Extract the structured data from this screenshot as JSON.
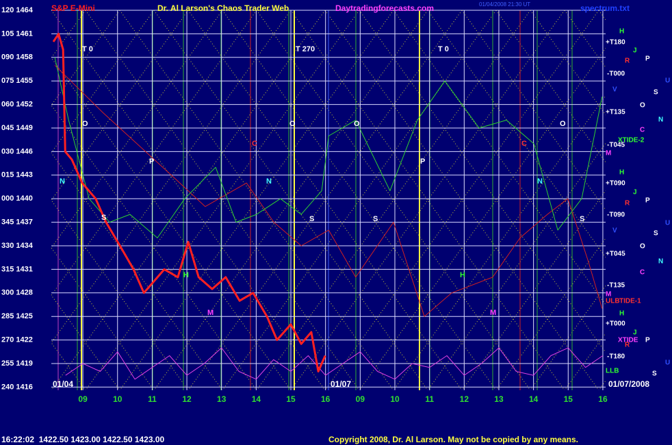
{
  "chart_data": {
    "type": "line",
    "title": "Dr. Al Larson's Chaos Trader Web",
    "instrument": "S&P E-Mini",
    "website": "Daytradingforecasts.com",
    "source_file": "spectrum.txt",
    "timestamp": "01/04/2008 21:30 UT",
    "status_line": "16:22:02  1422.50 1423.00 1422.50 1423.00",
    "copyright": "Copyright 2008, Dr. Al Larson. May not be copied by any means.",
    "dates": [
      "01/04",
      "01/07",
      "01/07/2008"
    ],
    "xlim": [
      0.09,
      16.08
    ],
    "xticks": [
      {
        "value": 1,
        "label": "09"
      },
      {
        "value": 2,
        "label": "10"
      },
      {
        "value": 3,
        "label": "11"
      },
      {
        "value": 4,
        "label": "12"
      },
      {
        "value": 5,
        "label": "13"
      },
      {
        "value": 6,
        "label": "14"
      },
      {
        "value": 7,
        "label": "15"
      },
      {
        "value": 8,
        "label": "16"
      },
      {
        "value": 9,
        "label": "09"
      },
      {
        "value": 10,
        "label": "10"
      },
      {
        "value": 11,
        "label": "11"
      },
      {
        "value": 12,
        "label": "12"
      },
      {
        "value": 13,
        "label": "13"
      },
      {
        "value": 14,
        "label": "14"
      },
      {
        "value": 15,
        "label": "15"
      },
      {
        "value": 16,
        "label": "16"
      }
    ],
    "ylim": [
      1415.6,
      1464
    ],
    "yticks": [
      {
        "value": 1464,
        "label": "120 1464"
      },
      {
        "value": 1461,
        "label": "105 1461"
      },
      {
        "value": 1458,
        "label": "090 1458"
      },
      {
        "value": 1455,
        "label": "075 1455"
      },
      {
        "value": 1452,
        "label": "060 1452"
      },
      {
        "value": 1449,
        "label": "045 1449"
      },
      {
        "value": 1446,
        "label": "030 1446"
      },
      {
        "value": 1443,
        "label": "015 1443"
      },
      {
        "value": 1440,
        "label": "000 1440"
      },
      {
        "value": 1437,
        "label": "345 1437"
      },
      {
        "value": 1434,
        "label": "330 1434"
      },
      {
        "value": 1431,
        "label": "315 1431"
      },
      {
        "value": 1428,
        "label": "300 1428"
      },
      {
        "value": 1425,
        "label": "285 1425"
      },
      {
        "value": 1422,
        "label": "270 1422"
      },
      {
        "value": 1419,
        "label": "255 1419"
      },
      {
        "value": 1416,
        "label": "240 1416"
      }
    ],
    "grid": true,
    "series": [
      {
        "name": "price",
        "color": "#ff2020",
        "width": 3,
        "x": [
          0.15,
          0.3,
          0.43,
          0.49,
          0.68,
          0.98,
          1.37,
          1.67,
          2.07,
          2.46,
          2.76,
          3.35,
          3.74,
          4.04,
          4.34,
          4.73,
          5.12,
          5.52,
          5.91,
          6.31,
          6.6,
          7.0,
          7.3,
          7.59,
          7.79,
          7.99
        ],
        "values": [
          1460,
          1461,
          1459,
          1446,
          1445,
          1442,
          1440,
          1437,
          1434,
          1431,
          1428,
          1431,
          1430,
          1434.5,
          1430,
          1428.5,
          1430,
          1427,
          1428,
          1425,
          1422,
          1424,
          1421.5,
          1423,
          1418,
          1420
        ]
      },
      {
        "name": "green forecast",
        "color": "#30d030",
        "width": 1,
        "x": [
          0.19,
          0.59,
          1.18,
          1.77,
          2.36,
          3.15,
          3.94,
          4.83,
          5.42,
          6.01,
          6.7,
          7.3,
          7.89,
          8.09,
          8.87,
          9.86,
          10.65,
          11.44,
          12.43,
          13.22,
          14.01,
          14.7,
          15.39,
          15.98
        ],
        "values": [
          1458,
          1450,
          1440,
          1437,
          1438,
          1435,
          1440,
          1444,
          1437,
          1438,
          1440,
          1438,
          1441,
          1448,
          1450,
          1441,
          1450,
          1455,
          1449,
          1450,
          1447,
          1436,
          1440,
          1453
        ]
      },
      {
        "name": "red forecast",
        "color": "#d02020",
        "width": 1,
        "x": [
          0.19,
          1.57,
          2.56,
          3.55,
          4.53,
          5.72,
          6.51,
          7.3,
          8.09,
          8.87,
          9.96,
          10.85,
          11.64,
          12.82,
          13.61,
          14.4,
          14.99,
          15.58,
          15.98
        ],
        "values": [
          1457,
          1451,
          1447,
          1443,
          1439,
          1442,
          1437,
          1434,
          1436,
          1430,
          1437,
          1425,
          1428,
          1430,
          1435,
          1438,
          1440,
          1432,
          1426
        ]
      },
      {
        "name": "spectrum",
        "color": "#e040e0",
        "width": 1,
        "x": [
          0.5,
          1.0,
          1.5,
          2.0,
          2.5,
          3.0,
          3.5,
          4.0,
          4.5,
          5.0,
          5.5,
          6.0,
          6.5,
          7.0,
          7.5,
          8.0,
          8.5,
          9.0,
          9.5,
          10.0,
          10.5,
          11.0,
          11.5,
          12.0,
          12.5,
          13.0,
          13.5,
          14.0,
          14.5,
          15.0,
          15.5,
          16.0
        ],
        "values": [
          1417.5,
          1419,
          1418,
          1420.5,
          1417,
          1418.5,
          1420,
          1417.5,
          1419,
          1421,
          1418,
          1417,
          1419.5,
          1418,
          1420,
          1417.5,
          1419,
          1420.5,
          1418,
          1417,
          1419,
          1418.5,
          1420,
          1417.5,
          1419,
          1421,
          1418,
          1417.5,
          1420,
          1421,
          1418.5,
          1420
        ]
      }
    ],
    "annotations": [
      "T 0",
      "T 270",
      "T 0",
      "O",
      "O",
      "O",
      "O",
      "C",
      "C",
      "P",
      "P",
      "N",
      "N",
      "N",
      "S",
      "S",
      "S",
      "S",
      "H",
      "H",
      "M",
      "M"
    ],
    "right_labels": [
      "H",
      "+T180",
      "J",
      "R",
      "P",
      "-T000",
      "U",
      "V",
      "S",
      "+T135",
      "O",
      "N",
      "C",
      "XTIDE-2",
      "-T045",
      "M",
      "H",
      "+T090",
      "J",
      "R",
      "P",
      "-T090",
      "U",
      "V",
      "S",
      "O",
      "+T045",
      "N",
      "C",
      "-T135",
      "M",
      "ULB",
      "TIDE-1",
      "H",
      "+T000",
      "J",
      "XTIDE",
      "P",
      "R",
      "-T180",
      "U",
      "LLB",
      "S"
    ]
  }
}
